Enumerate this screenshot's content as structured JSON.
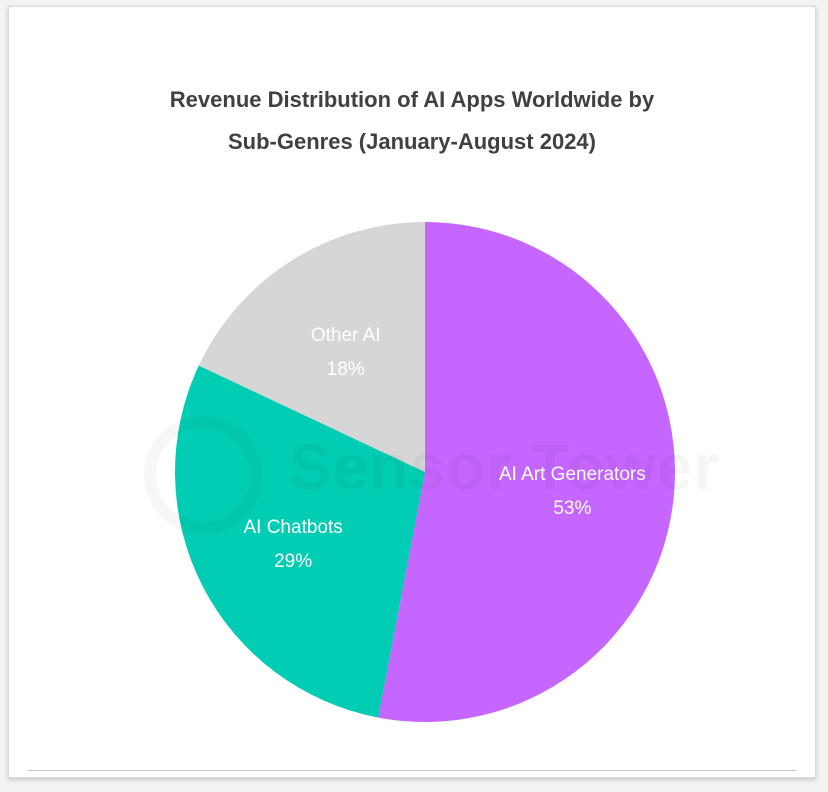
{
  "chart_data": {
    "type": "pie",
    "title_lines": [
      "Revenue Distribution of AI Apps Worldwide by",
      "Sub-Genres (January-August 2024)"
    ],
    "slices": [
      {
        "label": "AI Art Generators",
        "value": 53,
        "value_label": "53%",
        "color": "#c566ff"
      },
      {
        "label": "AI Chatbots",
        "value": 29,
        "value_label": "29%",
        "color": "#00cdb3"
      },
      {
        "label": "Other AI",
        "value": 18,
        "value_label": "18%",
        "color": "#d6d6d6"
      }
    ],
    "start_position": "12 o'clock",
    "direction": "clockwise",
    "watermark": "Sensor Tower"
  }
}
